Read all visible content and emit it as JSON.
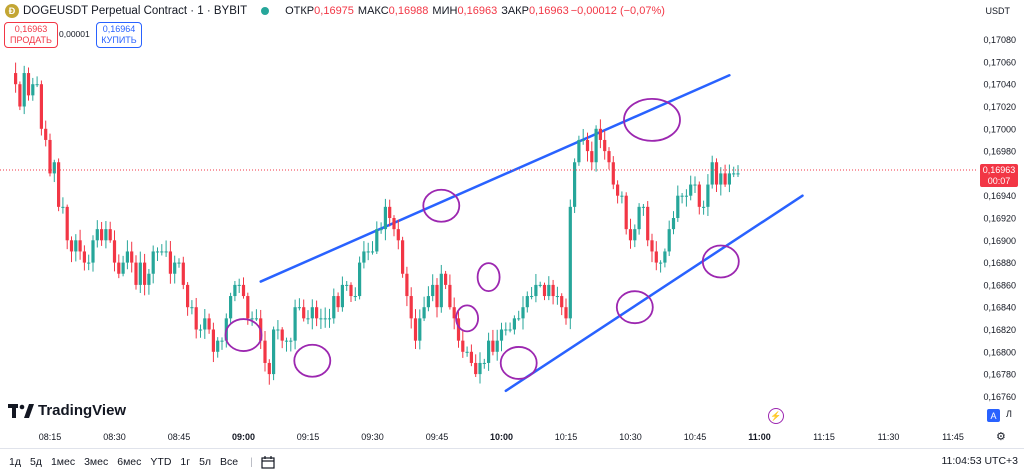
{
  "header": {
    "symbol_icon": "dogecoin-icon",
    "symbol_glyph": "Ð",
    "title": "DOGEUSDT Perpetual Contract · 1 · BYBIT",
    "ohlc": [
      {
        "label": "ОТКР",
        "value": "0,16975"
      },
      {
        "label": "МАКС",
        "value": "0,16988"
      },
      {
        "label": "МИН",
        "value": "0,16963"
      },
      {
        "label": "ЗАКР",
        "value": "0,16963"
      }
    ],
    "change": "−0,00012 (−0,07%)"
  },
  "trade": {
    "sell_price": "0,16963",
    "sell_label": "ПРОДАТЬ",
    "spread": "0,00001",
    "buy_price": "0,16964",
    "buy_label": "КУПИТЬ"
  },
  "currency": "USDT",
  "price_tag": {
    "price": "0,16963",
    "countdown": "00:07"
  },
  "logo_text": "TradingView",
  "timeframes": [
    "1д",
    "5д",
    "1мес",
    "3мес",
    "6мес",
    "YTD",
    "1г",
    "5л",
    "Все"
  ],
  "clock": "11:04:53 UTC+3",
  "scale_buttons": {
    "auto": "A",
    "log": "Л"
  },
  "colors": {
    "up": "#26a69a",
    "down": "#f23645",
    "trendline": "#2962ff",
    "circle": "#9c27b0",
    "last_price_line": "#f23645"
  },
  "chart_data": {
    "type": "candlestick",
    "title": "",
    "xlabel": "",
    "ylabel": "",
    "interval_minutes": 1,
    "x_ticks": [
      "08:15",
      "08:30",
      "08:45",
      "09:00",
      "09:15",
      "09:30",
      "09:45",
      "10:00",
      "10:15",
      "10:30",
      "10:45",
      "11:00",
      "11:15",
      "11:30",
      "11:45"
    ],
    "x_tick_bold": [
      "09:00",
      "10:00",
      "11:00"
    ],
    "y_ticks": [
      "0,17080",
      "0,17060",
      "0,17040",
      "0,17020",
      "0,17000",
      "0,16980",
      "0,16960",
      "0,16940",
      "0,16920",
      "0,16900",
      "0,16880",
      "0,16860",
      "0,16840",
      "0,16820",
      "0,16800",
      "0,16780",
      "0,16760"
    ],
    "ylim": [
      0.16752,
      0.17095
    ],
    "xlim": [
      "08:07",
      "11:57"
    ],
    "last_price": 0.16963,
    "grid": false,
    "series": [
      {
        "start_time": "08:06",
        "closes": [
          0.1705,
          0.1704,
          0.1702,
          0.1705,
          0.1703,
          0.1704,
          0.1704,
          0.17,
          0.1699,
          0.1696,
          0.1697,
          0.1693,
          0.1693,
          0.169,
          0.1689,
          0.169,
          0.1689,
          0.1688,
          0.1688,
          0.169,
          0.1691,
          0.169,
          0.1691,
          0.169,
          0.1688,
          0.1687,
          0.1688,
          0.1689,
          0.1688,
          0.1686,
          0.1688,
          0.1686,
          0.1687,
          0.1689,
          0.1689,
          0.1689,
          0.1689,
          0.1687,
          0.1688,
          0.1688,
          0.1686,
          0.1684,
          0.1684,
          0.1682,
          0.1682,
          0.1683,
          0.1682,
          0.168,
          0.1681,
          0.1681,
          0.1683,
          0.1685,
          0.1686,
          0.1686,
          0.1685,
          0.1683,
          0.1683,
          0.1683,
          0.1681,
          0.1679,
          0.1678,
          0.1682,
          0.1682,
          0.1681,
          0.1681,
          0.1681,
          0.1684,
          0.1684,
          0.1683,
          0.1683,
          0.1684,
          0.1683,
          0.1683,
          0.1683,
          0.1683,
          0.1685,
          0.1684,
          0.1686,
          0.1686,
          0.1685,
          0.1685,
          0.1688,
          0.1689,
          0.1689,
          0.1689,
          0.1691,
          0.1691,
          0.1693,
          0.1692,
          0.1691,
          0.169,
          0.1687,
          0.1685,
          0.1683,
          0.1681,
          0.1683,
          0.1684,
          0.1685,
          0.1686,
          0.1684,
          0.1687,
          0.1686,
          0.1684,
          0.1683,
          0.1681,
          0.168,
          0.168,
          0.1679,
          0.1678,
          0.1679,
          0.1679,
          0.1681,
          0.168,
          0.1681,
          0.1682,
          0.1682,
          0.1682,
          0.1683,
          0.1683,
          0.1684,
          0.1685,
          0.1685,
          0.1686,
          0.1686,
          0.1685,
          0.1686,
          0.1685,
          0.1685,
          0.1684,
          0.1683,
          0.1693,
          0.1697,
          0.1699,
          0.1699,
          0.1698,
          0.1697,
          0.17,
          0.1699,
          0.1698,
          0.1697,
          0.1695,
          0.1694,
          0.1694,
          0.1691,
          0.169,
          0.1691,
          0.1693,
          0.1693,
          0.169,
          0.1689,
          0.1688,
          0.1688,
          0.1689,
          0.1691,
          0.1692,
          0.1694,
          0.1694,
          0.1694,
          0.1695,
          0.1695,
          0.1693,
          0.1693,
          0.1695,
          0.1697,
          0.1695,
          0.1696,
          0.1695,
          0.1696,
          0.1696,
          0.1696
        ]
      }
    ],
    "trendlines": [
      {
        "name": "upper",
        "from": [
          "09:04",
          0.16863
        ],
        "to": [
          "10:53",
          0.17048
        ]
      },
      {
        "name": "lower",
        "from": [
          "10:01",
          0.16765
        ],
        "to": [
          "11:10",
          0.1694
        ]
      }
    ],
    "circled_points": [
      {
        "time": "09:00",
        "price": 0.16815
      },
      {
        "time": "09:16",
        "price": 0.16792
      },
      {
        "time": "09:46",
        "price": 0.16931
      },
      {
        "time": "09:52",
        "price": 0.1683
      },
      {
        "time": "09:57",
        "price": 0.16867
      },
      {
        "time": "10:04",
        "price": 0.1679
      },
      {
        "time": "10:31",
        "price": 0.1684
      },
      {
        "time": "10:35",
        "price": 0.17008
      },
      {
        "time": "10:51",
        "price": 0.16881
      }
    ]
  }
}
